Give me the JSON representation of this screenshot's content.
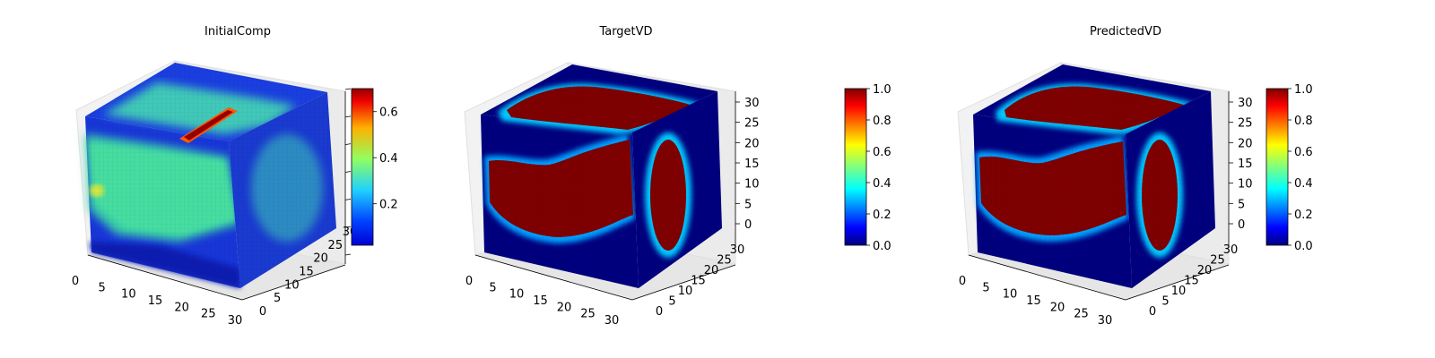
{
  "chart_data": [
    {
      "type": "heatmap",
      "subtype": "3d-voxels",
      "title": "InitialComp",
      "axes": {
        "x_ticks": [
          "0",
          "5",
          "10",
          "15",
          "20",
          "25",
          "30"
        ],
        "y_ticks": [
          "0",
          "5",
          "10",
          "15",
          "20",
          "25",
          "30"
        ],
        "z_ticks": []
      },
      "colorbar": {
        "cmap": "jet",
        "range": [
          0.02,
          0.7
        ],
        "ticks": [
          "0.2",
          "0.4",
          "0.6"
        ],
        "tick_values": [
          0.2,
          0.4,
          0.6
        ]
      },
      "grid": true
    },
    {
      "type": "heatmap",
      "subtype": "3d-voxels",
      "title": "TargetVD",
      "axes": {
        "x_ticks": [
          "0",
          "5",
          "10",
          "15",
          "20",
          "25",
          "30"
        ],
        "y_ticks": [
          "0",
          "5",
          "10",
          "15",
          "20",
          "25",
          "30"
        ],
        "z_ticks": [
          "0",
          "5",
          "10",
          "15",
          "20",
          "25",
          "30"
        ]
      },
      "colorbar": {
        "cmap": "jet",
        "range": [
          0.0,
          1.0
        ],
        "ticks": [
          "0.0",
          "0.2",
          "0.4",
          "0.6",
          "0.8",
          "1.0"
        ],
        "tick_values": [
          0,
          0.2,
          0.4,
          0.6,
          0.8,
          1.0
        ]
      },
      "grid": true
    },
    {
      "type": "heatmap",
      "subtype": "3d-voxels",
      "title": "PredictedVD",
      "axes": {
        "x_ticks": [
          "0",
          "5",
          "10",
          "15",
          "20",
          "25",
          "30"
        ],
        "y_ticks": [
          "0",
          "5",
          "10",
          "15",
          "20",
          "25",
          "30"
        ],
        "z_ticks": [
          "0",
          "5",
          "10",
          "15",
          "20",
          "25",
          "30"
        ]
      },
      "colorbar": {
        "cmap": "jet",
        "range": [
          0.0,
          1.0
        ],
        "ticks": [
          "0.0",
          "0.2",
          "0.4",
          "0.6",
          "0.8",
          "1.0"
        ],
        "tick_values": [
          0,
          0.2,
          0.4,
          0.6,
          0.8,
          1.0
        ]
      },
      "grid": true
    }
  ],
  "colors": {
    "jet_low": "#00007f",
    "jet_blue": "#0000ff",
    "jet_cyan": "#00ffff",
    "jet_green": "#7fff7f",
    "jet_yellow": "#ffff00",
    "jet_red": "#ff0000",
    "jet_high": "#7f0000",
    "pane": "#f2f2f2",
    "grid": "#d0d0d0"
  }
}
